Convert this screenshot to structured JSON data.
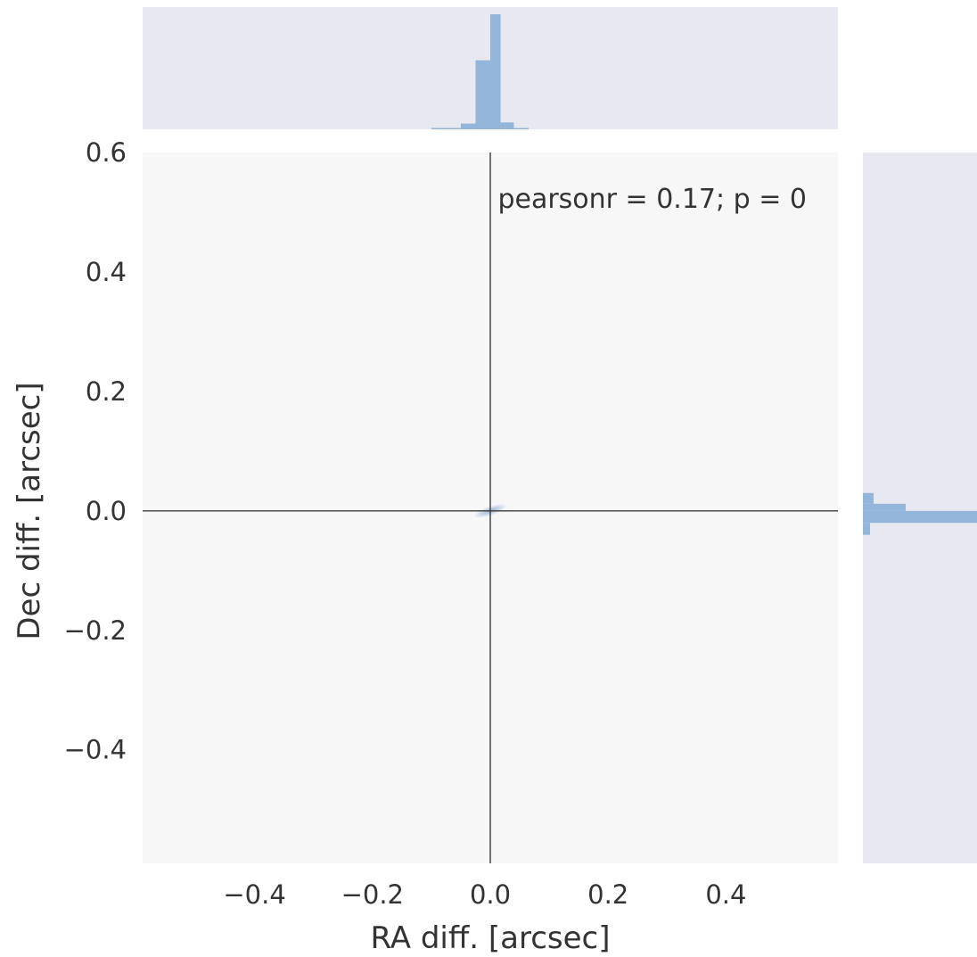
{
  "chart_data": {
    "type": "jointplot",
    "title": "",
    "xlabel": "RA diff. [arcsec]",
    "ylabel": "Dec diff. [arcsec]",
    "xlim": [
      -0.59,
      0.59
    ],
    "ylim": [
      -0.59,
      0.6
    ],
    "grid": false,
    "annotation": "pearsonr = 0.17; p = 0",
    "x_ticks": [
      -0.4,
      -0.2,
      0.0,
      0.2,
      0.4
    ],
    "x_tick_labels": [
      "−0.4",
      "−0.2",
      "0.0",
      "0.2",
      "0.4"
    ],
    "y_ticks": [
      0.6,
      0.4,
      0.2,
      0.0,
      -0.2,
      -0.4
    ],
    "y_tick_labels": [
      "0.6",
      "0.4",
      "0.2",
      "0.0",
      "−0.2",
      "−0.4"
    ],
    "reference_lines": {
      "x": 0.0,
      "y": 0.0
    },
    "joint_density": {
      "center": [
        0.0,
        0.0
      ],
      "extent_x": [
        -0.03,
        0.03
      ],
      "extent_y": [
        -0.008,
        0.008
      ]
    },
    "marginal_x_hist": {
      "bin_edges": [
        -0.1,
        -0.05,
        -0.025,
        0.0,
        0.0175,
        0.04,
        0.065
      ],
      "counts": [
        1,
        5,
        60,
        100,
        6,
        1
      ]
    },
    "marginal_y_hist": {
      "bin_edges": [
        -0.04,
        -0.02,
        -0.01,
        0.0,
        0.012,
        0.03
      ],
      "counts": [
        2,
        100,
        57,
        12,
        3
      ]
    },
    "colors": {
      "hist": "#92b5d9",
      "density": "#4a78b5",
      "axes_bg_joint": "#f7f7f8",
      "axes_bg_marginal": "#e8e8f1",
      "ref_line": "#3a3a3a"
    }
  }
}
